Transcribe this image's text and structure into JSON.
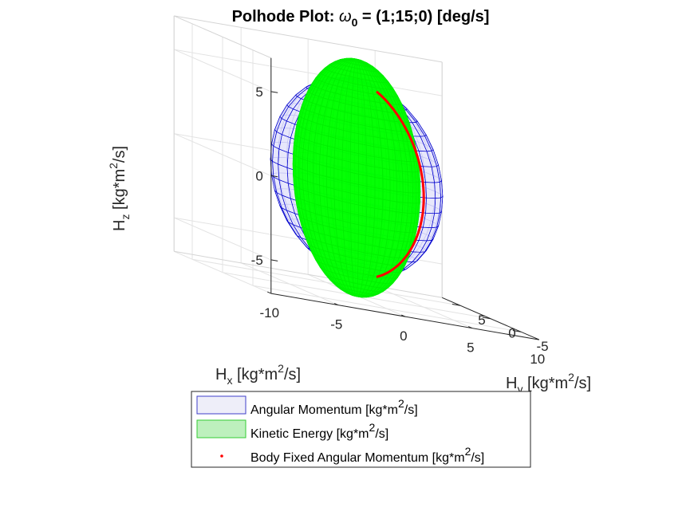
{
  "chart_data": {
    "type": "3d-surface",
    "title": {
      "prefix": "Polhode Plot: ",
      "omega": "ω",
      "omega_sub": "0",
      "suffix": " = (1;15;0) [deg/s]"
    },
    "xlabel": {
      "base": "H",
      "sub": "x",
      "unit_a": " [kg*m",
      "sup": "2",
      "unit_b": "/s]"
    },
    "ylabel": {
      "base": "H",
      "sub": "y",
      "unit_a": " [kg*m",
      "sup": "2",
      "unit_b": "/s]"
    },
    "zlabel": {
      "base": "H",
      "sub": "z",
      "unit_a": " [kg*m",
      "sup": "2",
      "unit_b": "/s]"
    },
    "xlim": [
      -10,
      10
    ],
    "ylim": [
      -8,
      8
    ],
    "zlim": [
      -7,
      7
    ],
    "xticks": [
      -10,
      -5,
      0,
      5,
      10
    ],
    "xtick_labels": [
      "-10",
      "-5",
      "0",
      "5",
      "10"
    ],
    "yticks": [
      -5,
      0,
      5
    ],
    "ytick_labels": [
      "-5",
      "0",
      "5"
    ],
    "zticks": [
      -5,
      0,
      5
    ],
    "ztick_labels": [
      "-5",
      "0",
      "5"
    ],
    "grid": true,
    "surfaces": [
      {
        "name": "Angular Momentum",
        "shape": "sphere",
        "radius": 5.85,
        "face_color": "#e6e6fa",
        "edge_color": "#0000cd"
      },
      {
        "name": "Kinetic Energy",
        "shape": "ellipsoid",
        "semi_axes": [
          4.33,
          4.33,
          7.05
        ],
        "face_color": "#00ff00",
        "edge_color": "#00ee00"
      }
    ],
    "polhode_curve": {
      "name": "Body Fixed Angular Momentum",
      "color": "#ff0000",
      "z_amplitude": 5.5
    },
    "legend": {
      "placement": "below-plot",
      "entries": [
        {
          "type": "patch",
          "text": "Angular Momentum [kg*m",
          "sup": "2",
          "tail": "/s]",
          "fill": "#eeeef9",
          "stroke": "#3d3dc9"
        },
        {
          "type": "patch",
          "text": "Kinetic Energy [kg*m",
          "sup": "2",
          "tail": "/s]",
          "fill": "#bdf0bd",
          "stroke": "#33cc33"
        },
        {
          "type": "marker",
          "text": "Body Fixed Angular Momentum [kg*m",
          "sup": "2",
          "tail": "/s]",
          "color": "#ff0000"
        }
      ]
    }
  }
}
